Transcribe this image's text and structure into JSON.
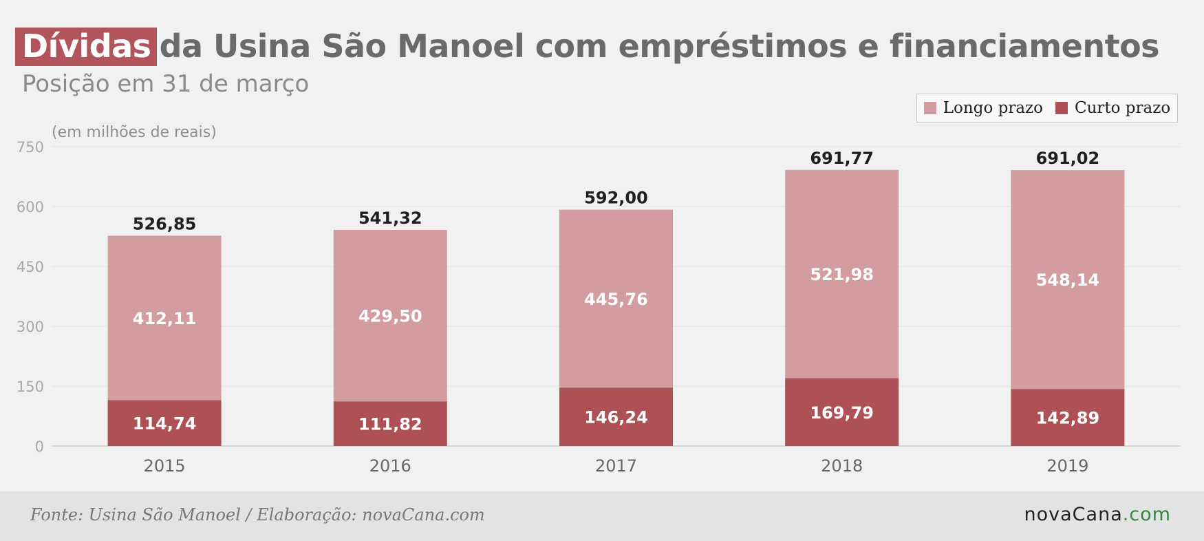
{
  "title_highlight": "Dívidas",
  "title_rest": "da Usina São Manoel com empréstimos e financiamentos",
  "subtitle": "Posição em 31 de março",
  "unit_label": "(em milhões de reais)",
  "source": "Fonte: Usina São Manoel / Elaboração: novaCana.com",
  "logo": {
    "main": "novaCana",
    "suffix": ".com"
  },
  "colors": {
    "longo": "#d39c9e",
    "curto": "#ad5157",
    "title_highlight": "#b2545b"
  },
  "chart_data": {
    "type": "bar",
    "stacked": true,
    "categories": [
      "2015",
      "2016",
      "2017",
      "2018",
      "2019"
    ],
    "series": [
      {
        "name": "Curto prazo",
        "values": [
          114.74,
          111.82,
          146.24,
          169.79,
          142.89
        ],
        "labels": [
          "114,74",
          "111,82",
          "146,24",
          "169,79",
          "142,89"
        ]
      },
      {
        "name": "Longo prazo",
        "values": [
          412.11,
          429.5,
          445.76,
          521.98,
          548.14
        ],
        "labels": [
          "412,11",
          "429,50",
          "445,76",
          "521,98",
          "548,14"
        ]
      }
    ],
    "totals": [
      526.85,
      541.32,
      592.0,
      691.77,
      691.02
    ],
    "total_labels": [
      "526,85",
      "541,32",
      "592,00",
      "691,77",
      "691,02"
    ],
    "ylim": [
      0,
      750
    ],
    "yticks": [
      0,
      150,
      300,
      450,
      600,
      750
    ],
    "legend_position": "top-right",
    "grid": true
  }
}
